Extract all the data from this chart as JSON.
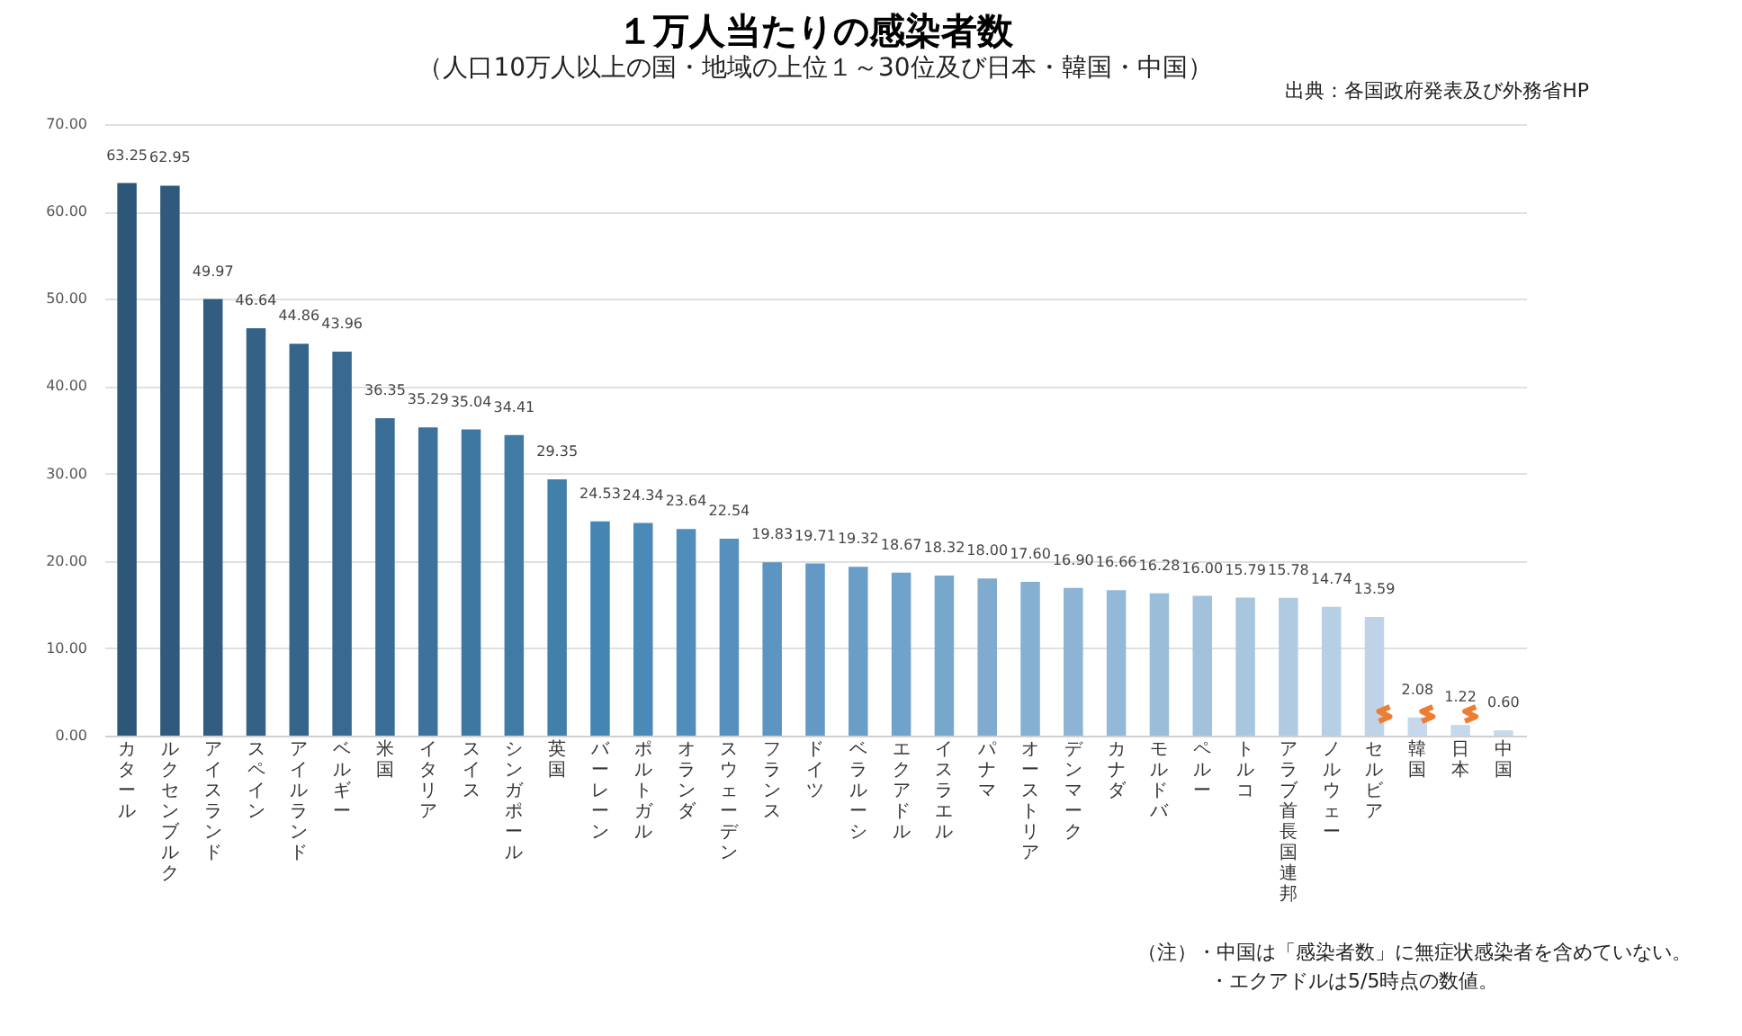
{
  "chart_data": {
    "type": "bar",
    "title": "１万人当たりの感染者数",
    "subtitle": "（人口10万人以上の国・地域の上位１～30位及び日本・韓国・中国）",
    "annotations": [
      "出典：各国政府発表及び外務省HP",
      "（注）・中国は「感染者数」に無症状感染者を含めていない。",
      "・エクアドルは5/5時点の数値。"
    ],
    "categories": [
      "カタール",
      "ルクセンブルク",
      "アイスランド",
      "スペイン",
      "アイルランド",
      "ベルギー",
      "米国",
      "イタリア",
      "スイス",
      "シンガポール",
      "英国",
      "バーレーン",
      "ポルトガル",
      "オランダ",
      "スウェーデン",
      "フランス",
      "ドイツ",
      "ベラルーシ",
      "エクアドル",
      "イスラエル",
      "パナマ",
      "オーストリア",
      "デンマーク",
      "カナダ",
      "モルドバ",
      "ペルー",
      "トルコ",
      "アラブ首長国連邦",
      "ノルウェー",
      "セルビア",
      "韓国",
      "日本",
      "中国"
    ],
    "values": [
      63.25,
      62.95,
      49.97,
      46.64,
      44.86,
      43.96,
      36.35,
      35.29,
      35.04,
      34.41,
      29.35,
      24.53,
      24.34,
      23.64,
      22.54,
      19.83,
      19.71,
      19.32,
      18.67,
      18.32,
      18.0,
      17.6,
      16.9,
      16.66,
      16.28,
      16.0,
      15.79,
      15.78,
      14.74,
      13.59,
      2.08,
      1.22,
      0.6
    ],
    "colors": [
      "#2e5678",
      "#30597c",
      "#325d81",
      "#346186",
      "#36658b",
      "#386990",
      "#3a6e96",
      "#3c729b",
      "#3e77a1",
      "#407ba6",
      "#4280ac",
      "#4585b3",
      "#4a89b8",
      "#508dbb",
      "#5691be",
      "#5c95c1",
      "#6399c4",
      "#6a9ec7",
      "#71a2ca",
      "#78a7cc",
      "#7fabcf",
      "#86b0d2",
      "#8db4d4",
      "#94b8d7",
      "#9bbdda",
      "#a2c1dc",
      "#a9c6df",
      "#b0cae2",
      "#b7cfe5",
      "#bed3e8",
      "#c5d8ec",
      "#c5d8ec",
      "#c5d8ec"
    ],
    "ylim": [
      0,
      70
    ],
    "yticks": [
      {
        "value": 0,
        "label": "0.00"
      },
      {
        "value": 10,
        "label": "10.00"
      },
      {
        "value": 20,
        "label": "20.00"
      },
      {
        "value": 30,
        "label": "30.00"
      },
      {
        "value": 40,
        "label": "40.00"
      },
      {
        "value": 50,
        "label": "50.00"
      },
      {
        "value": 60,
        "label": "60.00"
      },
      {
        "value": 70,
        "label": "70.00"
      }
    ],
    "value_labels": [
      "63.25",
      "62.95",
      "49.97",
      "46.64",
      "44.86",
      "43.96",
      "36.35",
      "35.29",
      "35.04",
      "34.41",
      "29.35",
      "24.53",
      "24.34",
      "23.64",
      "22.54",
      "19.83",
      "19.71",
      "19.32",
      "18.67",
      "18.32",
      "18.00",
      "17.60",
      "16.90",
      "16.66",
      "16.28",
      "16.00",
      "15.79",
      "15.78",
      "14.74",
      "13.59",
      "2.08",
      "1.22",
      "0.60"
    ],
    "grid": "y"
  }
}
